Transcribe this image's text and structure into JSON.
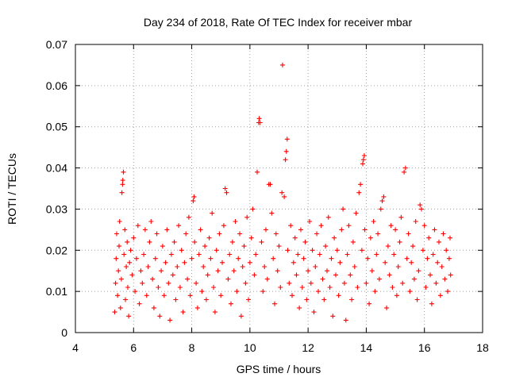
{
  "chart_data": {
    "type": "scatter",
    "title": "Day 234 of 2018, Rate Of TEC Index for receiver mbar",
    "xlabel": "GPS time / hours",
    "ylabel": "ROTI / TECUs",
    "xlim": [
      4,
      18
    ],
    "ylim": [
      0,
      0.07
    ],
    "x_ticks": [
      "4",
      "6",
      "8",
      "10",
      "12",
      "14",
      "16",
      "18"
    ],
    "y_ticks": [
      "0",
      "0.01",
      "0.02",
      "0.03",
      "0.04",
      "0.05",
      "0.06",
      "0.07"
    ],
    "grid": true,
    "marker": "+",
    "color": "#ff0000",
    "points": [
      [
        5.35,
        0.005
      ],
      [
        5.38,
        0.012
      ],
      [
        5.4,
        0.018
      ],
      [
        5.42,
        0.024
      ],
      [
        5.45,
        0.009
      ],
      [
        5.48,
        0.015
      ],
      [
        5.5,
        0.021
      ],
      [
        5.52,
        0.027
      ],
      [
        5.55,
        0.006
      ],
      [
        5.58,
        0.013
      ],
      [
        5.6,
        0.034
      ],
      [
        5.62,
        0.036
      ],
      [
        5.63,
        0.037
      ],
      [
        5.65,
        0.039
      ],
      [
        5.67,
        0.019
      ],
      [
        5.7,
        0.025
      ],
      [
        5.72,
        0.008
      ],
      [
        5.75,
        0.016
      ],
      [
        5.78,
        0.022
      ],
      [
        5.8,
        0.011
      ],
      [
        5.83,
        0.004
      ],
      [
        5.86,
        0.017
      ],
      [
        5.9,
        0.02
      ],
      [
        5.95,
        0.014
      ],
      [
        6.0,
        0.023
      ],
      [
        6.05,
        0.01
      ],
      [
        6.1,
        0.018
      ],
      [
        6.15,
        0.026
      ],
      [
        6.2,
        0.007
      ],
      [
        6.25,
        0.015
      ],
      [
        6.3,
        0.012
      ],
      [
        6.35,
        0.019
      ],
      [
        6.4,
        0.025
      ],
      [
        6.45,
        0.009
      ],
      [
        6.5,
        0.016
      ],
      [
        6.55,
        0.022
      ],
      [
        6.6,
        0.027
      ],
      [
        6.65,
        0.013
      ],
      [
        6.7,
        0.006
      ],
      [
        6.75,
        0.018
      ],
      [
        6.8,
        0.024
      ],
      [
        6.85,
        0.011
      ],
      [
        6.9,
        0.004
      ],
      [
        6.95,
        0.015
      ],
      [
        7.0,
        0.021
      ],
      [
        7.05,
        0.009
      ],
      [
        7.1,
        0.017
      ],
      [
        7.15,
        0.025
      ],
      [
        7.2,
        0.012
      ],
      [
        7.25,
        0.003
      ],
      [
        7.3,
        0.019
      ],
      [
        7.35,
        0.014
      ],
      [
        7.4,
        0.022
      ],
      [
        7.45,
        0.008
      ],
      [
        7.5,
        0.016
      ],
      [
        7.55,
        0.026
      ],
      [
        7.6,
        0.011
      ],
      [
        7.65,
        0.02
      ],
      [
        7.7,
        0.005
      ],
      [
        7.75,
        0.017
      ],
      [
        7.8,
        0.024
      ],
      [
        7.85,
        0.013
      ],
      [
        7.9,
        0.028
      ],
      [
        7.95,
        0.009
      ],
      [
        8.0,
        0.018
      ],
      [
        8.05,
        0.032
      ],
      [
        8.08,
        0.033
      ],
      [
        8.1,
        0.022
      ],
      [
        8.15,
        0.012
      ],
      [
        8.2,
        0.006
      ],
      [
        8.25,
        0.019
      ],
      [
        8.3,
        0.025
      ],
      [
        8.35,
        0.01
      ],
      [
        8.4,
        0.016
      ],
      [
        8.45,
        0.021
      ],
      [
        8.5,
        0.008
      ],
      [
        8.55,
        0.014
      ],
      [
        8.6,
        0.023
      ],
      [
        8.65,
        0.018
      ],
      [
        8.7,
        0.029
      ],
      [
        8.75,
        0.011
      ],
      [
        8.8,
        0.005
      ],
      [
        8.85,
        0.02
      ],
      [
        8.9,
        0.015
      ],
      [
        8.95,
        0.024
      ],
      [
        9.0,
        0.009
      ],
      [
        9.05,
        0.017
      ],
      [
        9.1,
        0.026
      ],
      [
        9.15,
        0.035
      ],
      [
        9.2,
        0.034
      ],
      [
        9.25,
        0.013
      ],
      [
        9.3,
        0.019
      ],
      [
        9.35,
        0.007
      ],
      [
        9.4,
        0.022
      ],
      [
        9.45,
        0.015
      ],
      [
        9.5,
        0.027
      ],
      [
        9.55,
        0.01
      ],
      [
        9.6,
        0.018
      ],
      [
        9.65,
        0.024
      ],
      [
        9.7,
        0.004
      ],
      [
        9.75,
        0.016
      ],
      [
        9.8,
        0.021
      ],
      [
        9.85,
        0.012
      ],
      [
        9.9,
        0.028
      ],
      [
        9.95,
        0.008
      ],
      [
        10.0,
        0.017
      ],
      [
        10.05,
        0.023
      ],
      [
        10.1,
        0.03
      ],
      [
        10.15,
        0.014
      ],
      [
        10.2,
        0.019
      ],
      [
        10.25,
        0.039
      ],
      [
        10.3,
        0.051
      ],
      [
        10.32,
        0.052
      ],
      [
        10.35,
        0.051
      ],
      [
        10.4,
        0.022
      ],
      [
        10.45,
        0.01
      ],
      [
        10.5,
        0.016
      ],
      [
        10.55,
        0.025
      ],
      [
        10.6,
        0.013
      ],
      [
        10.65,
        0.036
      ],
      [
        10.7,
        0.036
      ],
      [
        10.75,
        0.029
      ],
      [
        10.8,
        0.018
      ],
      [
        10.85,
        0.007
      ],
      [
        10.9,
        0.024
      ],
      [
        10.95,
        0.015
      ],
      [
        11.0,
        0.021
      ],
      [
        11.05,
        0.011
      ],
      [
        11.1,
        0.034
      ],
      [
        11.12,
        0.065
      ],
      [
        11.18,
        0.033
      ],
      [
        11.22,
        0.042
      ],
      [
        11.25,
        0.044
      ],
      [
        11.28,
        0.047
      ],
      [
        11.3,
        0.02
      ],
      [
        11.35,
        0.012
      ],
      [
        11.4,
        0.026
      ],
      [
        11.45,
        0.009
      ],
      [
        11.5,
        0.017
      ],
      [
        11.55,
        0.023
      ],
      [
        11.6,
        0.014
      ],
      [
        11.65,
        0.019
      ],
      [
        11.7,
        0.006
      ],
      [
        11.75,
        0.025
      ],
      [
        11.8,
        0.011
      ],
      [
        11.85,
        0.018
      ],
      [
        11.9,
        0.022
      ],
      [
        11.95,
        0.008
      ],
      [
        12.0,
        0.015
      ],
      [
        12.05,
        0.027
      ],
      [
        12.1,
        0.012
      ],
      [
        12.15,
        0.02
      ],
      [
        12.2,
        0.005
      ],
      [
        12.25,
        0.016
      ],
      [
        12.3,
        0.024
      ],
      [
        12.35,
        0.01
      ],
      [
        12.4,
        0.019
      ],
      [
        12.45,
        0.026
      ],
      [
        12.5,
        0.013
      ],
      [
        12.55,
        0.008
      ],
      [
        12.6,
        0.021
      ],
      [
        12.65,
        0.015
      ],
      [
        12.7,
        0.028
      ],
      [
        12.75,
        0.011
      ],
      [
        12.8,
        0.018
      ],
      [
        12.85,
        0.004
      ],
      [
        12.9,
        0.023
      ],
      [
        12.95,
        0.014
      ],
      [
        13.0,
        0.02
      ],
      [
        13.05,
        0.009
      ],
      [
        13.1,
        0.017
      ],
      [
        13.15,
        0.025
      ],
      [
        13.2,
        0.03
      ],
      [
        13.25,
        0.012
      ],
      [
        13.3,
        0.003
      ],
      [
        13.35,
        0.019
      ],
      [
        13.4,
        0.026
      ],
      [
        13.45,
        0.014
      ],
      [
        13.5,
        0.008
      ],
      [
        13.55,
        0.022
      ],
      [
        13.6,
        0.016
      ],
      [
        13.65,
        0.029
      ],
      [
        13.7,
        0.011
      ],
      [
        13.75,
        0.034
      ],
      [
        13.8,
        0.036
      ],
      [
        13.85,
        0.02
      ],
      [
        13.88,
        0.041
      ],
      [
        13.9,
        0.042
      ],
      [
        13.93,
        0.043
      ],
      [
        13.95,
        0.025
      ],
      [
        14.0,
        0.012
      ],
      [
        14.05,
        0.018
      ],
      [
        14.1,
        0.007
      ],
      [
        14.15,
        0.023
      ],
      [
        14.2,
        0.015
      ],
      [
        14.25,
        0.027
      ],
      [
        14.3,
        0.01
      ],
      [
        14.35,
        0.019
      ],
      [
        14.4,
        0.024
      ],
      [
        14.45,
        0.013
      ],
      [
        14.5,
        0.03
      ],
      [
        14.55,
        0.032
      ],
      [
        14.6,
        0.033
      ],
      [
        14.65,
        0.017
      ],
      [
        14.7,
        0.006
      ],
      [
        14.75,
        0.021
      ],
      [
        14.8,
        0.014
      ],
      [
        14.85,
        0.026
      ],
      [
        14.9,
        0.011
      ],
      [
        14.95,
        0.019
      ],
      [
        15.0,
        0.025
      ],
      [
        15.05,
        0.009
      ],
      [
        15.1,
        0.016
      ],
      [
        15.15,
        0.022
      ],
      [
        15.2,
        0.028
      ],
      [
        15.25,
        0.012
      ],
      [
        15.3,
        0.039
      ],
      [
        15.35,
        0.04
      ],
      [
        15.4,
        0.018
      ],
      [
        15.45,
        0.024
      ],
      [
        15.5,
        0.01
      ],
      [
        15.55,
        0.017
      ],
      [
        15.6,
        0.021
      ],
      [
        15.65,
        0.013
      ],
      [
        15.7,
        0.027
      ],
      [
        15.75,
        0.008
      ],
      [
        15.8,
        0.015
      ],
      [
        15.85,
        0.031
      ],
      [
        15.9,
        0.03
      ],
      [
        15.95,
        0.02
      ],
      [
        16.0,
        0.026
      ],
      [
        16.05,
        0.011
      ],
      [
        16.1,
        0.018
      ],
      [
        16.15,
        0.023
      ],
      [
        16.2,
        0.014
      ],
      [
        16.25,
        0.007
      ],
      [
        16.3,
        0.019
      ],
      [
        16.35,
        0.025
      ],
      [
        16.4,
        0.012
      ],
      [
        16.45,
        0.017
      ],
      [
        16.5,
        0.022
      ],
      [
        16.55,
        0.009
      ],
      [
        16.6,
        0.016
      ],
      [
        16.65,
        0.024
      ],
      [
        16.7,
        0.013
      ],
      [
        16.75,
        0.02
      ],
      [
        16.8,
        0.01
      ],
      [
        16.85,
        0.018
      ],
      [
        16.88,
        0.023
      ],
      [
        16.9,
        0.014
      ]
    ]
  }
}
